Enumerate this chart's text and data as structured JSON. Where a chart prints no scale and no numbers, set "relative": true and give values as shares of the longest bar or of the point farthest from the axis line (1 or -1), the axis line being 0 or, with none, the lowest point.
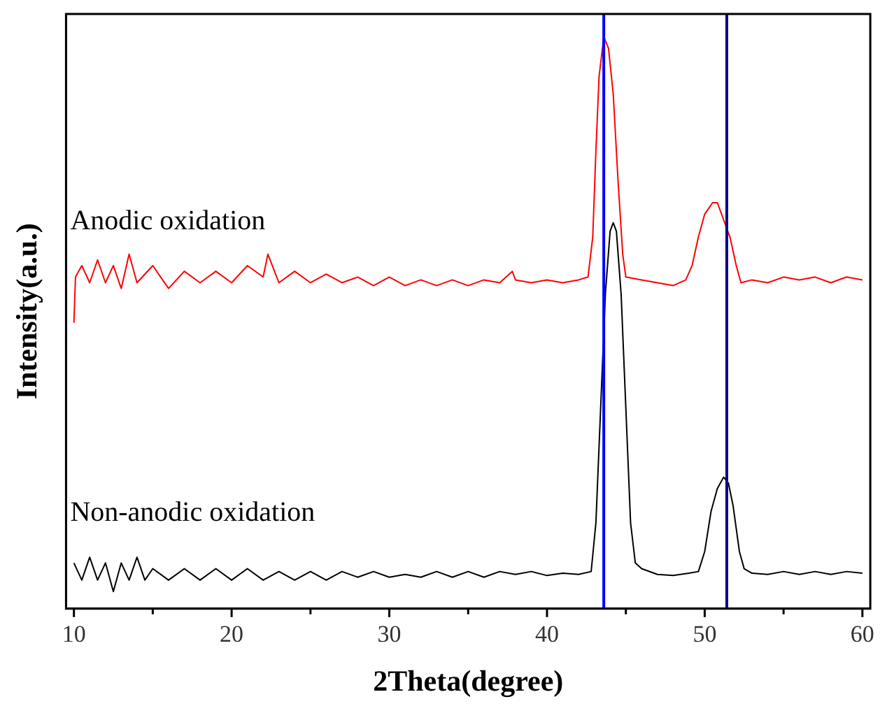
{
  "chart_data": {
    "type": "line",
    "xlabel": "2Theta(degree)",
    "ylabel": "Intensity(a.u.)",
    "relative": true,
    "grid": false,
    "legend": false,
    "marker": "none",
    "line_style": "solid",
    "xlim": [
      9.5,
      60.5
    ],
    "xticks": [
      10,
      {
        "value": 15,
        "label": null
      },
      20,
      {
        "value": 25,
        "label": null
      },
      30,
      {
        "value": 35,
        "label": null
      },
      40,
      {
        "value": 45,
        "label": null
      },
      50,
      {
        "value": 55,
        "label": null
      },
      60
    ],
    "ref_lines": [
      {
        "axis": "x",
        "value": 43.6,
        "color": "#0000ff"
      },
      {
        "axis": "x",
        "value": 51.4,
        "color": "#00008b"
      }
    ],
    "series": [
      {
        "name": "Anodic oxidation",
        "color": "#ff0000",
        "x": [
          10,
          10.1,
          10.5,
          11,
          11.5,
          12,
          12.5,
          13,
          13.5,
          14,
          15,
          16,
          17,
          18,
          19,
          20,
          21,
          22,
          22.3,
          23,
          24,
          25,
          26,
          27,
          28,
          29,
          30,
          31,
          32,
          33,
          34,
          35,
          36,
          37,
          37.8,
          38,
          39,
          40,
          41,
          42,
          42.6,
          42.9,
          43.1,
          43.3,
          43.6,
          43.9,
          44.2,
          44.5,
          44.8,
          45,
          46,
          47,
          48,
          48.8,
          49.2,
          49.6,
          50,
          50.5,
          50.8,
          51.2,
          51.6,
          52,
          52.3,
          53,
          54,
          55,
          56,
          57,
          58,
          59,
          60
        ],
        "values": [
          0.5,
          0.58,
          0.6,
          0.57,
          0.61,
          0.57,
          0.6,
          0.56,
          0.62,
          0.57,
          0.6,
          0.56,
          0.59,
          0.57,
          0.59,
          0.57,
          0.6,
          0.58,
          0.62,
          0.57,
          0.59,
          0.57,
          0.585,
          0.57,
          0.58,
          0.565,
          0.58,
          0.565,
          0.575,
          0.565,
          0.575,
          0.565,
          0.575,
          0.57,
          0.59,
          0.575,
          0.57,
          0.575,
          0.57,
          0.575,
          0.58,
          0.65,
          0.8,
          0.93,
          1,
          0.98,
          0.9,
          0.75,
          0.62,
          0.58,
          0.575,
          0.57,
          0.565,
          0.575,
          0.6,
          0.65,
          0.69,
          0.71,
          0.71,
          0.68,
          0.65,
          0.6,
          0.57,
          0.575,
          0.57,
          0.58,
          0.575,
          0.58,
          0.57,
          0.58,
          0.575
        ]
      },
      {
        "name": "Non-anodic oxidation",
        "color": "#000000",
        "x": [
          10,
          10.5,
          11,
          11.5,
          12,
          12.5,
          13,
          13.5,
          14,
          14.5,
          15,
          16,
          17,
          18,
          19,
          20,
          21,
          22,
          23,
          24,
          25,
          26,
          27,
          28,
          29,
          30,
          31,
          32,
          33,
          34,
          35,
          36,
          37,
          38,
          39,
          40,
          41,
          42,
          42.8,
          43.1,
          43.4,
          43.7,
          44,
          44.2,
          44.4,
          44.7,
          45,
          45.3,
          45.6,
          46,
          47,
          48,
          49,
          49.6,
          50,
          50.4,
          50.8,
          51.2,
          51.5,
          51.8,
          52.2,
          52.5,
          53,
          54,
          55,
          56,
          57,
          58,
          59,
          60
        ],
        "values": [
          0.08,
          0.05,
          0.09,
          0.05,
          0.08,
          0.03,
          0.08,
          0.05,
          0.09,
          0.05,
          0.07,
          0.05,
          0.07,
          0.05,
          0.07,
          0.05,
          0.07,
          0.05,
          0.065,
          0.05,
          0.065,
          0.05,
          0.065,
          0.055,
          0.065,
          0.055,
          0.06,
          0.055,
          0.065,
          0.055,
          0.065,
          0.055,
          0.065,
          0.06,
          0.065,
          0.058,
          0.062,
          0.06,
          0.065,
          0.15,
          0.35,
          0.55,
          0.66,
          0.675,
          0.66,
          0.55,
          0.35,
          0.15,
          0.08,
          0.07,
          0.06,
          0.058,
          0.062,
          0.065,
          0.1,
          0.17,
          0.21,
          0.23,
          0.22,
          0.18,
          0.1,
          0.07,
          0.062,
          0.06,
          0.065,
          0.06,
          0.065,
          0.06,
          0.065,
          0.062
        ]
      }
    ]
  }
}
